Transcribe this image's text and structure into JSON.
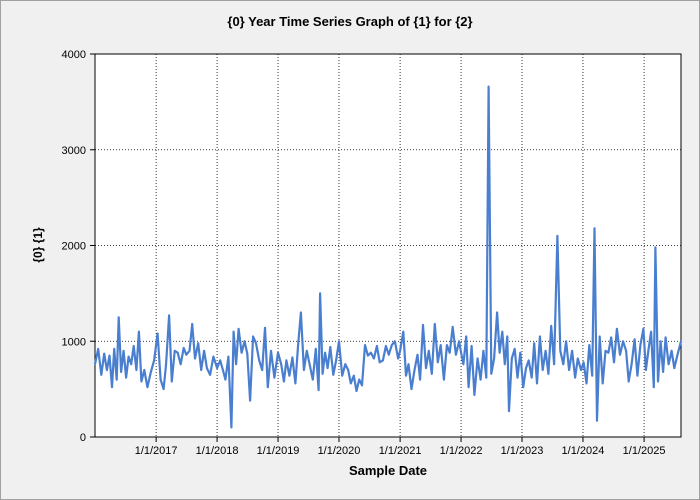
{
  "chart_data": {
    "type": "line",
    "title": "{0} Year Time Series Graph of {1} for {2}",
    "xlabel": "Sample Date",
    "ylabel": "{0} {1}",
    "ylim": [
      0,
      4000
    ],
    "yticks": [
      0,
      1000,
      2000,
      3000,
      4000
    ],
    "xlim": [
      "2016-01-01",
      "2025-08-10"
    ],
    "xticks": [
      "2017-01-01",
      "2018-01-01",
      "2019-01-01",
      "2020-01-01",
      "2021-01-01",
      "2022-01-01",
      "2023-01-01",
      "2024-01-01",
      "2025-01-01"
    ],
    "xtick_labels": [
      "1/1/2017",
      "1/1/2018",
      "1/1/2019",
      "1/1/2020",
      "1/1/2021",
      "1/1/2022",
      "1/1/2023",
      "1/1/2024",
      "1/1/2025"
    ],
    "grid": true,
    "line_color": "#4a7fd0",
    "series": [
      {
        "points": [
          [
            "2016-01-01",
            760
          ],
          [
            "2016-01-20",
            920
          ],
          [
            "2016-02-08",
            650
          ],
          [
            "2016-02-25",
            870
          ],
          [
            "2016-03-12",
            700
          ],
          [
            "2016-03-28",
            850
          ],
          [
            "2016-04-12",
            520
          ],
          [
            "2016-04-25",
            920
          ],
          [
            "2016-05-10",
            600
          ],
          [
            "2016-05-22",
            1250
          ],
          [
            "2016-06-05",
            680
          ],
          [
            "2016-06-20",
            900
          ],
          [
            "2016-07-05",
            620
          ],
          [
            "2016-07-20",
            840
          ],
          [
            "2016-08-05",
            760
          ],
          [
            "2016-08-20",
            950
          ],
          [
            "2016-09-05",
            700
          ],
          [
            "2016-09-20",
            1100
          ],
          [
            "2016-10-05",
            580
          ],
          [
            "2016-10-22",
            700
          ],
          [
            "2016-11-10",
            520
          ],
          [
            "2016-12-01",
            680
          ],
          [
            "2016-12-20",
            800
          ],
          [
            "2017-01-10",
            1080
          ],
          [
            "2017-01-28",
            600
          ],
          [
            "2017-02-15",
            500
          ],
          [
            "2017-03-01",
            750
          ],
          [
            "2017-03-20",
            1270
          ],
          [
            "2017-04-05",
            580
          ],
          [
            "2017-04-22",
            900
          ],
          [
            "2017-05-10",
            880
          ],
          [
            "2017-05-28",
            760
          ],
          [
            "2017-06-15",
            930
          ],
          [
            "2017-07-01",
            860
          ],
          [
            "2017-07-20",
            900
          ],
          [
            "2017-08-05",
            1180
          ],
          [
            "2017-08-22",
            820
          ],
          [
            "2017-09-10",
            980
          ],
          [
            "2017-09-28",
            700
          ],
          [
            "2017-10-15",
            900
          ],
          [
            "2017-11-01",
            720
          ],
          [
            "2017-11-20",
            650
          ],
          [
            "2017-12-10",
            840
          ],
          [
            "2018-01-01",
            720
          ],
          [
            "2018-01-20",
            800
          ],
          [
            "2018-02-05",
            700
          ],
          [
            "2018-02-20",
            600
          ],
          [
            "2018-03-10",
            840
          ],
          [
            "2018-03-28",
            100
          ],
          [
            "2018-04-10",
            1100
          ],
          [
            "2018-04-25",
            760
          ],
          [
            "2018-05-10",
            1130
          ],
          [
            "2018-05-28",
            880
          ],
          [
            "2018-06-15",
            1000
          ],
          [
            "2018-07-01",
            870
          ],
          [
            "2018-07-18",
            380
          ],
          [
            "2018-08-05",
            1050
          ],
          [
            "2018-08-22",
            980
          ],
          [
            "2018-09-10",
            800
          ],
          [
            "2018-09-28",
            700
          ],
          [
            "2018-10-15",
            1140
          ],
          [
            "2018-11-01",
            520
          ],
          [
            "2018-11-20",
            900
          ],
          [
            "2018-12-10",
            620
          ],
          [
            "2019-01-01",
            880
          ],
          [
            "2019-01-20",
            760
          ],
          [
            "2019-02-05",
            580
          ],
          [
            "2019-02-20",
            800
          ],
          [
            "2019-03-10",
            640
          ],
          [
            "2019-03-28",
            830
          ],
          [
            "2019-04-15",
            560
          ],
          [
            "2019-05-01",
            960
          ],
          [
            "2019-05-18",
            1300
          ],
          [
            "2019-06-05",
            700
          ],
          [
            "2019-06-22",
            900
          ],
          [
            "2019-07-10",
            750
          ],
          [
            "2019-07-28",
            600
          ],
          [
            "2019-08-15",
            920
          ],
          [
            "2019-09-01",
            490
          ],
          [
            "2019-09-10",
            1500
          ],
          [
            "2019-09-25",
            660
          ],
          [
            "2019-10-10",
            880
          ],
          [
            "2019-10-25",
            720
          ],
          [
            "2019-11-10",
            940
          ],
          [
            "2019-11-28",
            650
          ],
          [
            "2019-12-15",
            800
          ],
          [
            "2020-01-01",
            1000
          ],
          [
            "2020-01-20",
            640
          ],
          [
            "2020-02-08",
            760
          ],
          [
            "2020-02-25",
            700
          ],
          [
            "2020-03-12",
            560
          ],
          [
            "2020-03-30",
            640
          ],
          [
            "2020-04-15",
            480
          ],
          [
            "2020-05-01",
            600
          ],
          [
            "2020-05-18",
            540
          ],
          [
            "2020-06-05",
            960
          ],
          [
            "2020-06-22",
            850
          ],
          [
            "2020-07-10",
            880
          ],
          [
            "2020-07-28",
            820
          ],
          [
            "2020-08-15",
            950
          ],
          [
            "2020-09-01",
            780
          ],
          [
            "2020-09-20",
            800
          ],
          [
            "2020-10-08",
            950
          ],
          [
            "2020-10-25",
            860
          ],
          [
            "2020-11-12",
            960
          ],
          [
            "2020-12-01",
            1000
          ],
          [
            "2020-12-20",
            820
          ],
          [
            "2021-01-01",
            900
          ],
          [
            "2021-01-20",
            1100
          ],
          [
            "2021-02-05",
            640
          ],
          [
            "2021-02-20",
            760
          ],
          [
            "2021-03-10",
            500
          ],
          [
            "2021-03-28",
            700
          ],
          [
            "2021-04-15",
            860
          ],
          [
            "2021-05-01",
            600
          ],
          [
            "2021-05-18",
            1170
          ],
          [
            "2021-06-05",
            720
          ],
          [
            "2021-06-22",
            900
          ],
          [
            "2021-07-10",
            660
          ],
          [
            "2021-07-28",
            1180
          ],
          [
            "2021-08-15",
            780
          ],
          [
            "2021-09-01",
            960
          ],
          [
            "2021-09-20",
            600
          ],
          [
            "2021-10-08",
            960
          ],
          [
            "2021-10-25",
            880
          ],
          [
            "2021-11-12",
            1150
          ],
          [
            "2021-12-01",
            860
          ],
          [
            "2021-12-20",
            1000
          ],
          [
            "2022-01-01",
            880
          ],
          [
            "2022-01-15",
            760
          ],
          [
            "2022-02-01",
            1050
          ],
          [
            "2022-02-15",
            520
          ],
          [
            "2022-03-05",
            950
          ],
          [
            "2022-03-22",
            440
          ],
          [
            "2022-04-10",
            820
          ],
          [
            "2022-04-28",
            600
          ],
          [
            "2022-05-15",
            900
          ],
          [
            "2022-06-01",
            620
          ],
          [
            "2022-06-15",
            3660
          ],
          [
            "2022-07-01",
            660
          ],
          [
            "2022-07-18",
            820
          ],
          [
            "2022-08-05",
            1300
          ],
          [
            "2022-08-20",
            880
          ],
          [
            "2022-09-05",
            1100
          ],
          [
            "2022-09-20",
            760
          ],
          [
            "2022-10-05",
            1050
          ],
          [
            "2022-10-15",
            270
          ],
          [
            "2022-11-01",
            820
          ],
          [
            "2022-11-18",
            920
          ],
          [
            "2022-12-05",
            620
          ],
          [
            "2022-12-22",
            880
          ],
          [
            "2023-01-08",
            520
          ],
          [
            "2023-01-25",
            720
          ],
          [
            "2023-02-10",
            800
          ],
          [
            "2023-02-28",
            620
          ],
          [
            "2023-03-15",
            980
          ],
          [
            "2023-04-01",
            560
          ],
          [
            "2023-04-18",
            1050
          ],
          [
            "2023-05-05",
            700
          ],
          [
            "2023-05-22",
            900
          ],
          [
            "2023-06-08",
            660
          ],
          [
            "2023-06-25",
            1160
          ],
          [
            "2023-07-12",
            760
          ],
          [
            "2023-08-01",
            2100
          ],
          [
            "2023-08-18",
            900
          ],
          [
            "2023-09-05",
            760
          ],
          [
            "2023-09-22",
            1000
          ],
          [
            "2023-10-10",
            700
          ],
          [
            "2023-10-28",
            900
          ],
          [
            "2023-11-15",
            620
          ],
          [
            "2023-12-01",
            820
          ],
          [
            "2023-12-20",
            700
          ],
          [
            "2024-01-05",
            780
          ],
          [
            "2024-01-22",
            560
          ],
          [
            "2024-02-08",
            960
          ],
          [
            "2024-02-25",
            640
          ],
          [
            "2024-03-10",
            2180
          ],
          [
            "2024-03-25",
            170
          ],
          [
            "2024-04-10",
            1050
          ],
          [
            "2024-04-28",
            560
          ],
          [
            "2024-05-15",
            900
          ],
          [
            "2024-06-01",
            880
          ],
          [
            "2024-06-18",
            1040
          ],
          [
            "2024-07-05",
            780
          ],
          [
            "2024-07-22",
            1130
          ],
          [
            "2024-08-10",
            860
          ],
          [
            "2024-08-28",
            1000
          ],
          [
            "2024-09-15",
            900
          ],
          [
            "2024-10-01",
            580
          ],
          [
            "2024-10-18",
            760
          ],
          [
            "2024-11-05",
            1020
          ],
          [
            "2024-11-22",
            640
          ],
          [
            "2024-12-10",
            960
          ],
          [
            "2024-12-28",
            1130
          ],
          [
            "2025-01-12",
            700
          ],
          [
            "2025-01-28",
            920
          ],
          [
            "2025-02-12",
            1100
          ],
          [
            "2025-02-28",
            520
          ],
          [
            "2025-03-10",
            1980
          ],
          [
            "2025-03-25",
            580
          ],
          [
            "2025-04-10",
            1000
          ],
          [
            "2025-04-25",
            680
          ],
          [
            "2025-05-10",
            1040
          ],
          [
            "2025-05-28",
            760
          ],
          [
            "2025-06-15",
            900
          ],
          [
            "2025-07-01",
            720
          ],
          [
            "2025-07-20",
            860
          ],
          [
            "2025-08-10",
            1000
          ]
        ]
      }
    ]
  }
}
